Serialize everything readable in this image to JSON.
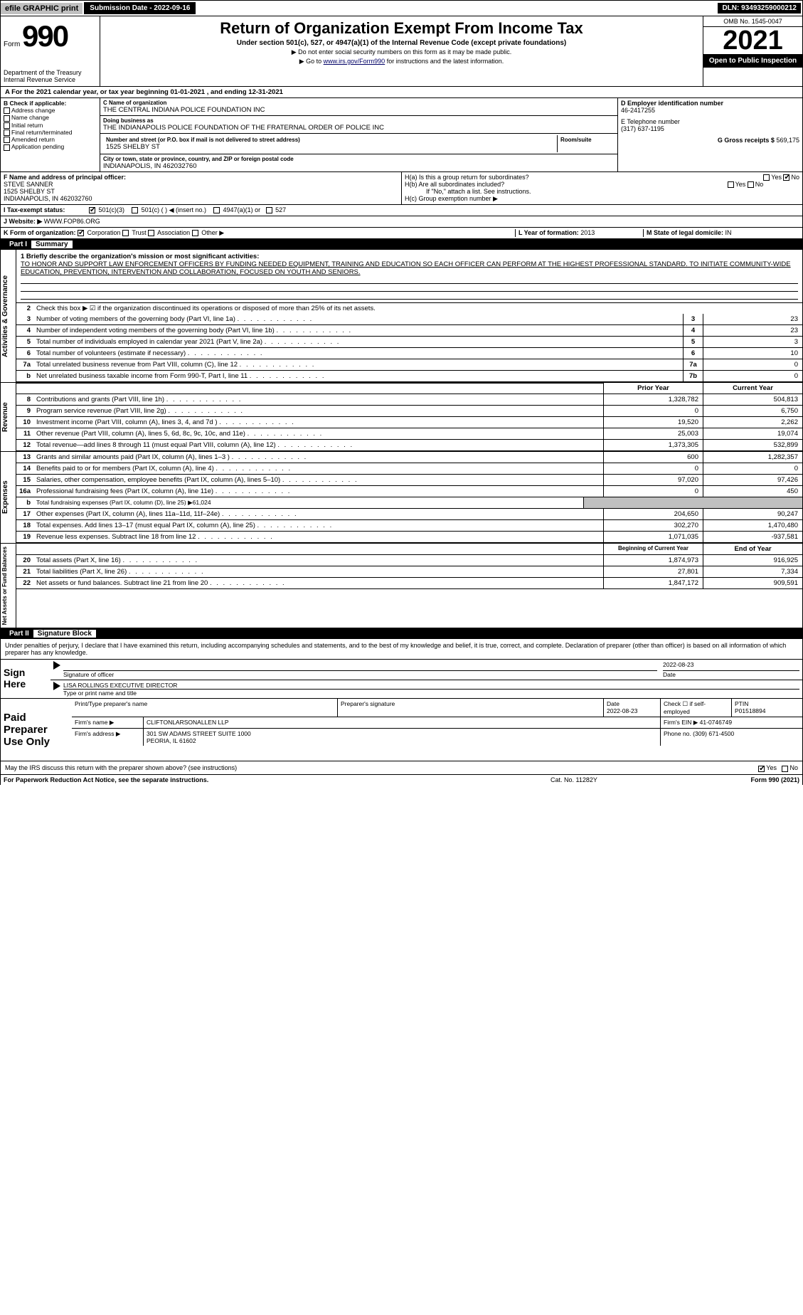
{
  "topbar": {
    "efile": "efile GRAPHIC print",
    "submission": "Submission Date - 2022-09-16",
    "dln": "DLN: 93493259000212"
  },
  "header": {
    "form_word": "Form",
    "form_num": "990",
    "title": "Return of Organization Exempt From Income Tax",
    "sub1": "Under section 501(c), 527, or 4947(a)(1) of the Internal Revenue Code (except private foundations)",
    "sub2": "▶ Do not enter social security numbers on this form as it may be made public.",
    "sub3_pre": "▶ Go to ",
    "sub3_link": "www.irs.gov/Form990",
    "sub3_post": " for instructions and the latest information.",
    "dept": "Department of the Treasury\nInternal Revenue Service",
    "omb": "OMB No. 1545-0047",
    "year": "2021",
    "open": "Open to Public Inspection"
  },
  "taxyear": "A For the 2021 calendar year, or tax year beginning 01-01-2021    , and ending 12-31-2021",
  "box_b": {
    "hdr": "B Check if applicable:",
    "items": [
      "Address change",
      "Name change",
      "Initial return",
      "Final return/terminated",
      "Amended return",
      "Application pending"
    ]
  },
  "box_c": {
    "name_lbl": "C Name of organization",
    "name": "THE CENTRAL INDIANA POLICE FOUNDATION INC",
    "dba_lbl": "Doing business as",
    "dba": "THE INDIANAPOLIS POLICE FOUNDATION OF THE FRATERNAL ORDER OF POLICE INC",
    "street_lbl": "Number and street (or P.O. box if mail is not delivered to street address)",
    "street": "1525 SHELBY ST",
    "room_lbl": "Room/suite",
    "city_lbl": "City or town, state or province, country, and ZIP or foreign postal code",
    "city": "INDIANAPOLIS, IN  462032760"
  },
  "box_d": {
    "lbl": "D Employer identification number",
    "val": "46-2417255"
  },
  "box_e": {
    "lbl": "E Telephone number",
    "val": "(317) 637-1195"
  },
  "box_g": {
    "lbl": "G Gross receipts $",
    "val": "569,175"
  },
  "box_f": {
    "lbl": "F  Name and address of principal officer:",
    "name": "STEVE SANNER",
    "addr1": "1525 SHELBY ST",
    "addr2": "INDIANAPOLIS, IN  462032760"
  },
  "box_h": {
    "ha": "H(a)  Is this a group return for subordinates?",
    "hb": "H(b)  Are all subordinates included?",
    "hb_note": "If \"No,\" attach a list. See instructions.",
    "hc": "H(c)  Group exemption number ▶",
    "yes": "Yes",
    "no": "No"
  },
  "box_i": {
    "lbl": "I  Tax-exempt status:",
    "opts": [
      "501(c)(3)",
      "501(c) (   ) ◀ (insert no.)",
      "4947(a)(1) or",
      "527"
    ]
  },
  "box_j": {
    "lbl": "J  Website: ▶",
    "val": "WWW.FOP86.ORG"
  },
  "box_k": {
    "lbl": "K Form of organization:",
    "opts": [
      "Corporation",
      "Trust",
      "Association",
      "Other ▶"
    ]
  },
  "box_l": {
    "lbl": "L Year of formation:",
    "val": "2013"
  },
  "box_m": {
    "lbl": "M State of legal domicile:",
    "val": "IN"
  },
  "part1": {
    "num": "Part I",
    "title": "Summary"
  },
  "mission": {
    "lbl": "1  Briefly describe the organization's mission or most significant activities:",
    "txt": "TO HONOR AND SUPPORT LAW ENFORCEMENT OFFICERS BY FUNDING NEEDED EQUIPMENT, TRAINING AND EDUCATION SO EACH OFFICER CAN PERFORM AT THE HIGHEST PROFESSIONAL STANDARD. TO INITIATE COMMUNITY-WIDE EDUCATION, PREVENTION, INTERVENTION AND COLLABORATION, FOCUSED ON YOUTH AND SENIORS."
  },
  "tabs": {
    "ag": "Activities & Governance",
    "rev": "Revenue",
    "exp": "Expenses",
    "net": "Net Assets or Fund Balances"
  },
  "lines_ag": [
    {
      "n": "2",
      "t": "Check this box ▶ ☑ if the organization discontinued its operations or disposed of more than 25% of its net assets."
    },
    {
      "n": "3",
      "t": "Number of voting members of the governing body (Part VI, line 1a)",
      "b": "3",
      "v": "23"
    },
    {
      "n": "4",
      "t": "Number of independent voting members of the governing body (Part VI, line 1b)",
      "b": "4",
      "v": "23"
    },
    {
      "n": "5",
      "t": "Total number of individuals employed in calendar year 2021 (Part V, line 2a)",
      "b": "5",
      "v": "3"
    },
    {
      "n": "6",
      "t": "Total number of volunteers (estimate if necessary)",
      "b": "6",
      "v": "10"
    },
    {
      "n": "7a",
      "t": "Total unrelated business revenue from Part VIII, column (C), line 12",
      "b": "7a",
      "v": "0"
    },
    {
      "n": "b",
      "t": "Net unrelated business taxable income from Form 990-T, Part I, line 11",
      "b": "7b",
      "v": "0"
    }
  ],
  "col_hdr": {
    "prior": "Prior Year",
    "current": "Current Year",
    "beg": "Beginning of Current Year",
    "end": "End of Year"
  },
  "lines_rev": [
    {
      "n": "8",
      "t": "Contributions and grants (Part VIII, line 1h)",
      "p": "1,328,782",
      "c": "504,813"
    },
    {
      "n": "9",
      "t": "Program service revenue (Part VIII, line 2g)",
      "p": "0",
      "c": "6,750"
    },
    {
      "n": "10",
      "t": "Investment income (Part VIII, column (A), lines 3, 4, and 7d )",
      "p": "19,520",
      "c": "2,262"
    },
    {
      "n": "11",
      "t": "Other revenue (Part VIII, column (A), lines 5, 6d, 8c, 9c, 10c, and 11e)",
      "p": "25,003",
      "c": "19,074"
    },
    {
      "n": "12",
      "t": "Total revenue—add lines 8 through 11 (must equal Part VIII, column (A), line 12)",
      "p": "1,373,305",
      "c": "532,899"
    }
  ],
  "lines_exp": [
    {
      "n": "13",
      "t": "Grants and similar amounts paid (Part IX, column (A), lines 1–3 )",
      "p": "600",
      "c": "1,282,357"
    },
    {
      "n": "14",
      "t": "Benefits paid to or for members (Part IX, column (A), line 4)",
      "p": "0",
      "c": "0"
    },
    {
      "n": "15",
      "t": "Salaries, other compensation, employee benefits (Part IX, column (A), lines 5–10)",
      "p": "97,020",
      "c": "97,426"
    },
    {
      "n": "16a",
      "t": "Professional fundraising fees (Part IX, column (A), line 11e)",
      "p": "0",
      "c": "450"
    },
    {
      "n": "b",
      "t": "Total fundraising expenses (Part IX, column (D), line 25) ▶61,024",
      "shade": true
    },
    {
      "n": "17",
      "t": "Other expenses (Part IX, column (A), lines 11a–11d, 11f–24e)",
      "p": "204,650",
      "c": "90,247"
    },
    {
      "n": "18",
      "t": "Total expenses. Add lines 13–17 (must equal Part IX, column (A), line 25)",
      "p": "302,270",
      "c": "1,470,480"
    },
    {
      "n": "19",
      "t": "Revenue less expenses. Subtract line 18 from line 12",
      "p": "1,071,035",
      "c": "-937,581"
    }
  ],
  "lines_net": [
    {
      "n": "20",
      "t": "Total assets (Part X, line 16)",
      "p": "1,874,973",
      "c": "916,925"
    },
    {
      "n": "21",
      "t": "Total liabilities (Part X, line 26)",
      "p": "27,801",
      "c": "7,334"
    },
    {
      "n": "22",
      "t": "Net assets or fund balances. Subtract line 21 from line 20",
      "p": "1,847,172",
      "c": "909,591"
    }
  ],
  "part2": {
    "num": "Part II",
    "title": "Signature Block"
  },
  "penalty": "Under penalties of perjury, I declare that I have examined this return, including accompanying schedules and statements, and to the best of my knowledge and belief, it is true, correct, and complete. Declaration of preparer (other than officer) is based on all information of which preparer has any knowledge.",
  "sign": {
    "here": "Sign Here",
    "sig_lbl": "Signature of officer",
    "date_lbl": "Date",
    "date": "2022-08-23",
    "name": "LISA ROLLINGS  EXECUTIVE DIRECTOR",
    "name_lbl": "Type or print name and title"
  },
  "paid": {
    "title": "Paid Preparer Use Only",
    "hdr": [
      "Print/Type preparer's name",
      "Preparer's signature",
      "Date",
      "Check ☐ if self-employed",
      "PTIN"
    ],
    "row1_date": "2022-08-23",
    "row1_ptin": "P01518894",
    "firm_lbl": "Firm's name      ▶",
    "firm": "CLIFTONLARSONALLEN LLP",
    "ein_lbl": "Firm's EIN ▶",
    "ein": "41-0746749",
    "addr_lbl": "Firm's address ▶",
    "addr1": "301 SW ADAMS STREET SUITE 1000",
    "addr2": "PEORIA, IL  61602",
    "phone_lbl": "Phone no.",
    "phone": "(309) 671-4500"
  },
  "discuss": "May the IRS discuss this return with the preparer shown above? (see instructions)",
  "discuss_yes": "Yes",
  "discuss_no": "No",
  "footer": {
    "f1": "For Paperwork Reduction Act Notice, see the separate instructions.",
    "f2": "Cat. No. 11282Y",
    "f3": "Form 990 (2021)"
  }
}
